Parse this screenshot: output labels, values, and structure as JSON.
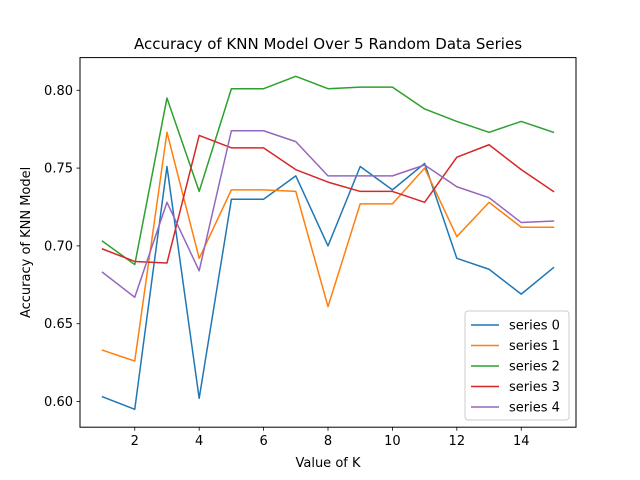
{
  "chart_data": {
    "type": "line",
    "title": "Accuracy of KNN Model Over 5 Random Data Series",
    "xlabel": "Value of K",
    "ylabel": "Accuracy of KNN Model",
    "x": [
      1,
      2,
      3,
      4,
      5,
      6,
      7,
      8,
      9,
      10,
      11,
      12,
      13,
      14,
      15
    ],
    "xlim": [
      0.3,
      15.7
    ],
    "ylim": [
      0.5835,
      0.821
    ],
    "xticks": [
      2,
      4,
      6,
      8,
      10,
      12,
      14
    ],
    "yticks": [
      0.6,
      0.65,
      0.7,
      0.75,
      0.8
    ],
    "ytick_labels": [
      "0.60",
      "0.65",
      "0.70",
      "0.75",
      "0.80"
    ],
    "grid": false,
    "legend_position": "lower-right",
    "series": [
      {
        "name": "series 0",
        "color": "#1f77b4",
        "values": [
          0.603,
          0.595,
          0.751,
          0.602,
          0.73,
          0.73,
          0.745,
          0.7,
          0.751,
          0.736,
          0.753,
          0.692,
          0.685,
          0.669,
          0.686
        ]
      },
      {
        "name": "series 1",
        "color": "#ff7f0e",
        "values": [
          0.633,
          0.626,
          0.773,
          0.692,
          0.736,
          0.736,
          0.735,
          0.661,
          0.727,
          0.727,
          0.75,
          0.706,
          0.728,
          0.712,
          0.712
        ]
      },
      {
        "name": "series 2",
        "color": "#2ca02c",
        "values": [
          0.703,
          0.688,
          0.795,
          0.735,
          0.801,
          0.801,
          0.809,
          0.801,
          0.802,
          0.802,
          0.788,
          0.78,
          0.773,
          0.78,
          0.773
        ]
      },
      {
        "name": "series 3",
        "color": "#d62728",
        "values": [
          0.698,
          0.69,
          0.689,
          0.771,
          0.763,
          0.763,
          0.749,
          0.741,
          0.735,
          0.735,
          0.728,
          0.757,
          0.765,
          0.749,
          0.735
        ]
      },
      {
        "name": "series 4",
        "color": "#9467bd",
        "values": [
          0.683,
          0.667,
          0.728,
          0.684,
          0.774,
          0.774,
          0.767,
          0.745,
          0.745,
          0.745,
          0.752,
          0.738,
          0.731,
          0.715,
          0.716
        ]
      }
    ]
  }
}
